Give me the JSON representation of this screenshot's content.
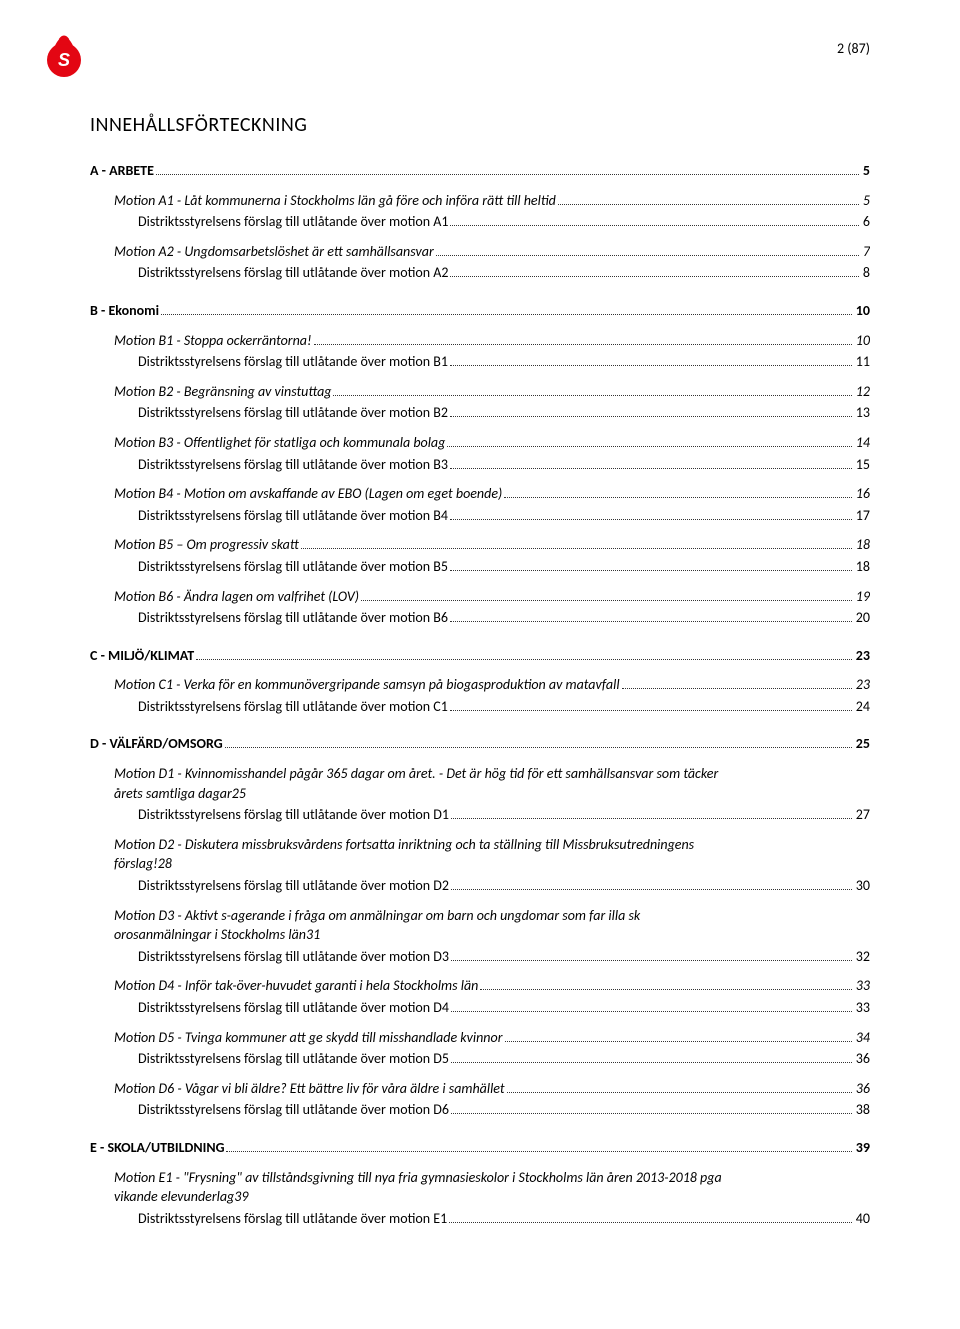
{
  "page_number": "2 (87)",
  "title": "INNEHÅLLSFÖRTECKNING",
  "colors": {
    "text": "#000000",
    "background": "#ffffff",
    "dot": "#333333",
    "logo_red": "#e30613"
  },
  "font": {
    "toc_fontsize_pt": 11,
    "title_fontsize_pt": 15
  },
  "toc": [
    {
      "type": "section",
      "label": "A - ARBETE",
      "page": "5"
    },
    {
      "type": "motion",
      "label": "Motion A1 - Låt kommunerna i Stockholms län gå före och införa rätt till heltid",
      "page": "5"
    },
    {
      "type": "sub",
      "label": "Distriktsstyrelsens förslag till utlåtande över motion A1",
      "page": "6"
    },
    {
      "type": "motion",
      "label": "Motion A2 - Ungdomsarbetslöshet är ett samhällsansvar",
      "page": "7"
    },
    {
      "type": "sub",
      "label": "Distriktsstyrelsens förslag till utlåtande över motion A2",
      "page": "8"
    },
    {
      "type": "section",
      "label": "B - Ekonomi",
      "page": "10"
    },
    {
      "type": "motion",
      "label": "Motion B1 - Stoppa ockerräntorna!",
      "page": "10"
    },
    {
      "type": "sub",
      "label": "Distriktsstyrelsens förslag till utlåtande över motion B1",
      "page": "11"
    },
    {
      "type": "motion",
      "label": "Motion B2 - Begränsning av vinstuttag",
      "page": "12"
    },
    {
      "type": "sub",
      "label": "Distriktsstyrelsens förslag till utlåtande över motion B2",
      "page": "13"
    },
    {
      "type": "motion",
      "label": "Motion B3 - Offentlighet för statliga och kommunala bolag",
      "page": "14"
    },
    {
      "type": "sub",
      "label": "Distriktsstyrelsens förslag till utlåtande över motion B3",
      "page": "15"
    },
    {
      "type": "motion",
      "label": "Motion B4 - Motion om avskaffande av EBO (Lagen om eget boende)",
      "page": "16"
    },
    {
      "type": "sub",
      "label": "Distriktsstyrelsens förslag till utlåtande över motion B4",
      "page": "17"
    },
    {
      "type": "motion",
      "label": "Motion B5 – Om progressiv skatt",
      "page": "18"
    },
    {
      "type": "sub",
      "label": "Distriktsstyrelsens förslag till utlåtande över motion B5",
      "page": "18"
    },
    {
      "type": "motion",
      "label": "Motion B6 - Ändra lagen om valfrihet (LOV)",
      "page": "19"
    },
    {
      "type": "sub",
      "label": "Distriktsstyrelsens förslag till utlåtande över motion B6",
      "page": "20"
    },
    {
      "type": "section",
      "label": "C - MILJÖ/KLIMAT",
      "page": "23"
    },
    {
      "type": "motion",
      "label": "Motion C1 - Verka för en kommunövergripande samsyn på biogasproduktion av matavfall",
      "page": "23"
    },
    {
      "type": "sub",
      "label": "Distriktsstyrelsens förslag till utlåtande över motion C1",
      "page": "24"
    },
    {
      "type": "section",
      "label": "D - VÄLFÄRD/OMSORG",
      "page": "25"
    },
    {
      "type": "motion-multiline",
      "first": "Motion D1 - Kvinnomisshandel pågår 365 dagar om året. - Det är hög tid för ett samhällsansvar som täcker",
      "last": "årets samtliga dagar",
      "page": "25"
    },
    {
      "type": "sub",
      "label": "Distriktsstyrelsens förslag till utlåtande över motion D1",
      "page": "27"
    },
    {
      "type": "motion-multiline",
      "first": "Motion D2 - Diskutera missbruksvårdens fortsatta inriktning och ta ställning till Missbruksutredningens",
      "last": "förslag!",
      "page": "28"
    },
    {
      "type": "sub",
      "label": "Distriktsstyrelsens förslag till utlåtande över motion D2",
      "page": "30"
    },
    {
      "type": "motion-multiline",
      "first": "Motion D3 - Aktivt s-agerande i fråga om anmälningar om barn och ungdomar som far illa sk",
      "last": "orosanmälningar i Stockholms län",
      "page": "31"
    },
    {
      "type": "sub",
      "label": "Distriktsstyrelsens förslag till utlåtande över motion D3",
      "page": "32"
    },
    {
      "type": "motion",
      "label": "Motion D4 - Inför tak-över-huvudet garanti i hela Stockholms län",
      "page": "33"
    },
    {
      "type": "sub",
      "label": "Distriktsstyrelsens förslag till utlåtande över motion D4",
      "page": "33"
    },
    {
      "type": "motion",
      "label": "Motion D5 - Tvinga kommuner att ge skydd till misshandlade kvinnor",
      "page": "34"
    },
    {
      "type": "sub",
      "label": "Distriktsstyrelsens förslag till utlåtande över motion D5",
      "page": "36"
    },
    {
      "type": "motion",
      "label": "Motion D6 - Vågar vi bli äldre? Ett bättre liv för våra äldre i samhället",
      "page": "36"
    },
    {
      "type": "sub",
      "label": "Distriktsstyrelsens förslag till utlåtande över motion D6",
      "page": "38"
    },
    {
      "type": "section",
      "label": "E - SKOLA/UTBILDNING",
      "page": "39"
    },
    {
      "type": "motion-multiline",
      "first": "Motion E1 - \"Frysning\" av tillståndsgivning till nya fria gymnasieskolor i Stockholms län åren 2013-2018 pga",
      "last": "vikande elevunderlag",
      "page": "39"
    },
    {
      "type": "sub",
      "label": "Distriktsstyrelsens förslag till utlåtande över motion E1",
      "page": "40"
    }
  ]
}
